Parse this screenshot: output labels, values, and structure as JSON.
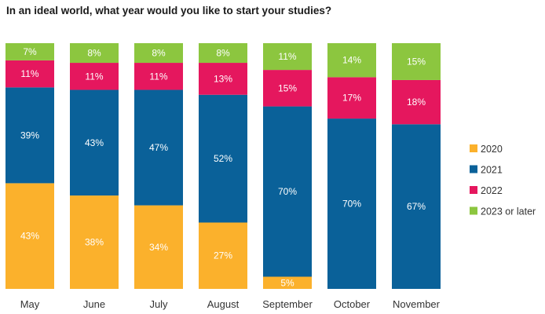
{
  "chart_data": {
    "type": "bar",
    "stacked": true,
    "orientation": "vertical",
    "title": "In an ideal world, what year would you like to start your studies?",
    "xlabel": "",
    "ylabel": "",
    "ylim": [
      0,
      100
    ],
    "grid": false,
    "legend_position": "right",
    "categories": [
      "May",
      "June",
      "July",
      "August",
      "September",
      "October",
      "November"
    ],
    "series": [
      {
        "name": "2020",
        "color": "#FBB12C",
        "values": [
          43,
          38,
          34,
          27,
          5,
          0,
          0
        ],
        "labels": [
          "43%",
          "38%",
          "34%",
          "27%",
          "5%",
          "",
          ""
        ]
      },
      {
        "name": "2021",
        "color": "#0A6199",
        "values": [
          39,
          43,
          47,
          52,
          70,
          70,
          67
        ],
        "labels": [
          "39%",
          "43%",
          "47%",
          "52%",
          "70%",
          "70%",
          "67%"
        ]
      },
      {
        "name": "2022",
        "color": "#E5175E",
        "values": [
          11,
          11,
          11,
          13,
          15,
          17,
          18
        ],
        "labels": [
          "11%",
          "11%",
          "11%",
          "13%",
          "15%",
          "17%",
          "18%"
        ]
      },
      {
        "name": "2023 or later",
        "color": "#8CC63F",
        "values": [
          7,
          8,
          8,
          8,
          11,
          14,
          15
        ],
        "labels": [
          "7%",
          "8%",
          "8%",
          "8%",
          "11%",
          "14%",
          "15%"
        ]
      }
    ]
  }
}
